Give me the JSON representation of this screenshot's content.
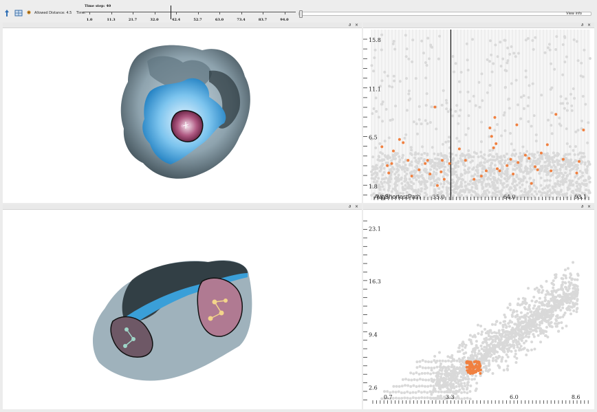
{
  "toolbar": {
    "allowed_distance_label": "Allowed Distance: 4.5",
    "time_label": "Time:",
    "timeline_title": "Time step: 40",
    "timeline_labels": [
      "1.0",
      "11.3",
      "21.7",
      "32.0",
      "42.4",
      "52.7",
      "63.0",
      "73.4",
      "83.7",
      "94.0"
    ],
    "view_info_label": "View info"
  },
  "panes": {
    "dock_label": "∂",
    "close_label": "×"
  },
  "colors": {
    "background_points": "#d9d9d9",
    "highlight_points": "#f08040",
    "surface_gray": "#8fa4b0",
    "surface_blue": "#3a9fd8",
    "pocket_pink": "#b04070"
  },
  "chart_data": [
    {
      "type": "scatter",
      "title": "",
      "xlabel": "AvgShortestPath",
      "ylabel": "",
      "x_ticks": [
        "35.0",
        "64.0",
        "93.1"
      ],
      "x_tick_overlap": "13.9",
      "y_ticks": [
        "1.8",
        "6.5",
        "11.1",
        "15.8"
      ],
      "xlim": [
        7.5,
        97.0
      ],
      "ylim": [
        0.5,
        16.8
      ],
      "selected_time": 40,
      "background_series": {
        "name": "",
        "description": "many gray points, dense below y≈5, sparser up to y≈16"
      },
      "highlighted_series": {
        "name": "",
        "points": [
          [
            11.8,
            5.6
          ],
          [
            14.0,
            3.8
          ],
          [
            14.6,
            3.1
          ],
          [
            15.8,
            4.0
          ],
          [
            16.5,
            5.2
          ],
          [
            19.0,
            6.3
          ],
          [
            20.5,
            6.0
          ],
          [
            22.5,
            4.3
          ],
          [
            24.0,
            2.8
          ],
          [
            27.0,
            3.4
          ],
          [
            29.5,
            4.0
          ],
          [
            30.5,
            4.3
          ],
          [
            31.5,
            3.0
          ],
          [
            33.5,
            9.4
          ],
          [
            34.5,
            1.9
          ],
          [
            36.0,
            3.2
          ],
          [
            36.5,
            4.3
          ],
          [
            37.3,
            2.5
          ],
          [
            39.5,
            4.0
          ],
          [
            43.5,
            5.4
          ],
          [
            46.0,
            4.3
          ],
          [
            49.5,
            2.5
          ],
          [
            52.5,
            2.8
          ],
          [
            54.5,
            3.3
          ],
          [
            56.0,
            7.4
          ],
          [
            56.7,
            6.6
          ],
          [
            57.5,
            5.5
          ],
          [
            58.0,
            8.4
          ],
          [
            58.5,
            5.9
          ],
          [
            59.0,
            3.5
          ],
          [
            60.0,
            3.3
          ],
          [
            63.0,
            3.8
          ],
          [
            64.5,
            4.4
          ],
          [
            65.5,
            3.0
          ],
          [
            67.0,
            7.7
          ],
          [
            67.5,
            4.1
          ],
          [
            70.5,
            4.8
          ],
          [
            72.0,
            4.5
          ],
          [
            73.0,
            2.1
          ],
          [
            74.5,
            3.7
          ],
          [
            75.5,
            3.4
          ],
          [
            77.0,
            5.0
          ],
          [
            79.5,
            5.8
          ],
          [
            81.0,
            3.3
          ],
          [
            83.0,
            8.7
          ],
          [
            86.0,
            4.4
          ],
          [
            91.5,
            3.1
          ],
          [
            92.5,
            4.2
          ],
          [
            94.3,
            7.2
          ]
        ]
      }
    },
    {
      "type": "scatter",
      "title": "",
      "xlabel": "",
      "ylabel": "",
      "x_ticks": [
        "0.7",
        "3.3",
        "6.0",
        "8.6"
      ],
      "y_ticks": [
        "2.6",
        "9.4",
        "16.3",
        "23.1"
      ],
      "xlim": [
        0.0,
        9.2
      ],
      "ylim": [
        0.5,
        25.0
      ],
      "background_series": {
        "name": "",
        "description": "dense gray cloud rising from bottom-left to top-right, with horizontal streaks near the bottom"
      },
      "highlighted_series": {
        "name": "",
        "description": "tight orange cluster around x≈4.0–4.6, y≈4.4–6.0"
      }
    }
  ]
}
